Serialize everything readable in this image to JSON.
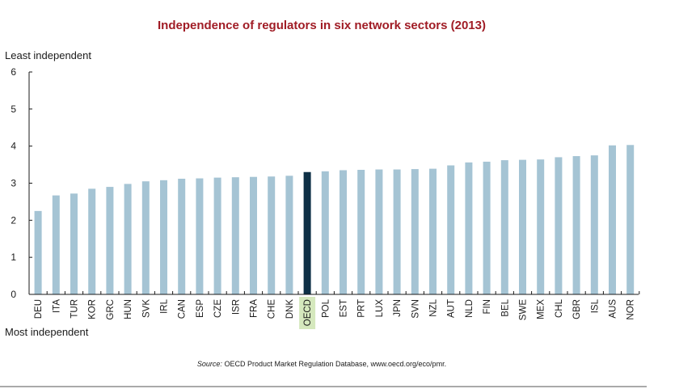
{
  "chart_data": {
    "type": "bar",
    "title": "Independence of regulators in six network sectors (2013)",
    "ylabel_top": "Least  independent",
    "ylabel_bottom": "Most independent",
    "source_prefix": "Source:",
    "source_text": " OECD Product Market Regulation Database, www.oecd.org/eco/pmr.",
    "ylim": [
      0,
      6
    ],
    "yticks": [
      0,
      1,
      2,
      3,
      4,
      5,
      6
    ],
    "grid": false,
    "highlight_category": "OECD",
    "categories": [
      "DEU",
      "ITA",
      "TUR",
      "KOR",
      "GRC",
      "HUN",
      "SVK",
      "IRL",
      "CAN",
      "ESP",
      "CZE",
      "ISR",
      "FRA",
      "CHE",
      "DNK",
      "OECD",
      "POL",
      "EST",
      "PRT",
      "LUX",
      "JPN",
      "SVN",
      "NZL",
      "AUT",
      "NLD",
      "FIN",
      "BEL",
      "SWE",
      "MEX",
      "CHL",
      "GBR",
      "ISL",
      "AUS",
      "NOR"
    ],
    "values": [
      2.25,
      2.67,
      2.72,
      2.85,
      2.9,
      2.98,
      3.05,
      3.08,
      3.12,
      3.13,
      3.15,
      3.16,
      3.17,
      3.18,
      3.2,
      3.3,
      3.32,
      3.35,
      3.36,
      3.37,
      3.37,
      3.38,
      3.39,
      3.48,
      3.56,
      3.58,
      3.62,
      3.63,
      3.64,
      3.7,
      3.73,
      3.75,
      4.02,
      4.03
    ]
  },
  "colors": {
    "bar": "#a5c4d4",
    "highlight_bar": "#0e3046",
    "highlight_label_bg": "#d5e8bd",
    "title": "#a01c25",
    "axis": "#1a1a1a"
  }
}
